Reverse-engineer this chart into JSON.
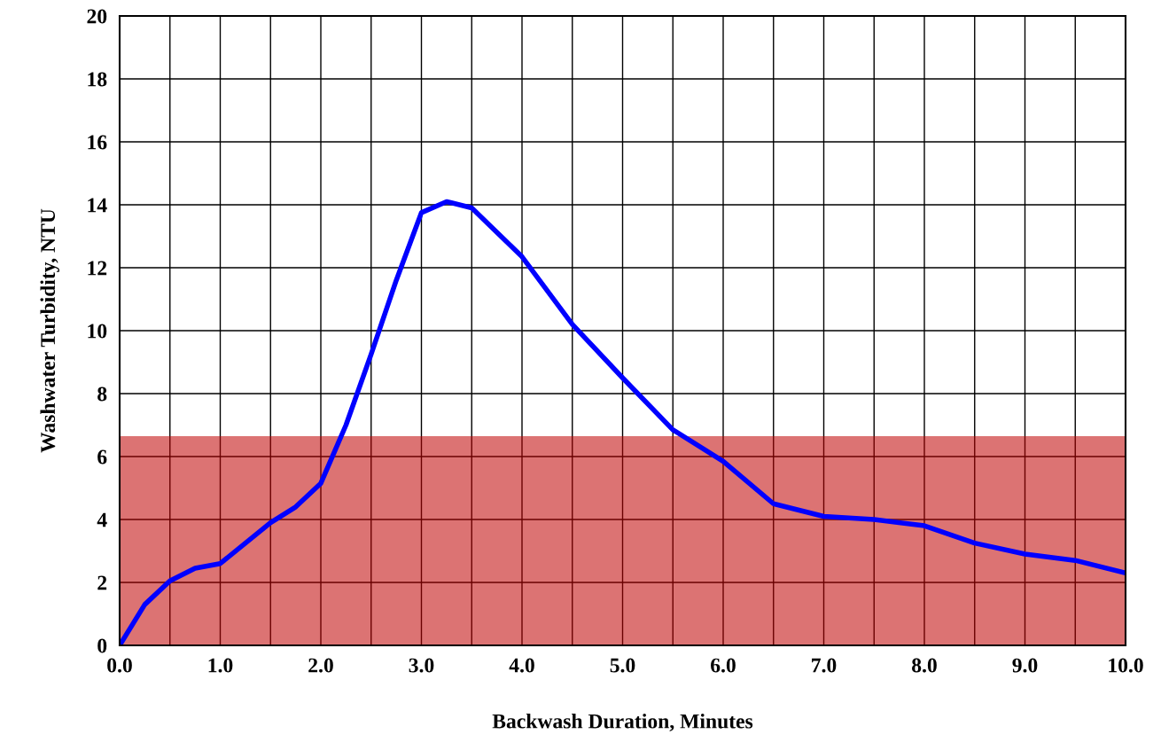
{
  "chart_data": {
    "type": "line",
    "xlabel": "Backwash Duration, Minutes",
    "ylabel": "Washwater Turbidity, NTU",
    "x": [
      0,
      0.25,
      0.5,
      0.75,
      1.0,
      1.5,
      1.75,
      2.0,
      2.25,
      2.5,
      2.75,
      3.0,
      3.25,
      3.5,
      4.0,
      4.5,
      5.0,
      5.5,
      6.0,
      6.5,
      7.0,
      7.5,
      8.0,
      8.5,
      9.0,
      9.5,
      10.0
    ],
    "series": [
      {
        "color": "#0000ff",
        "values": [
          0,
          1.3,
          2.05,
          2.45,
          2.6,
          3.9,
          4.4,
          5.15,
          7.0,
          9.25,
          11.6,
          13.75,
          14.1,
          13.9,
          12.35,
          10.2,
          8.5,
          6.85,
          5.85,
          4.5,
          4.1,
          4.0,
          3.8,
          3.25,
          2.9,
          2.7,
          2.3
        ]
      }
    ],
    "bands": [
      {
        "axis": "y",
        "from": 0,
        "to": 6.65,
        "color": "#c00000"
      }
    ],
    "xlim": [
      0,
      10
    ],
    "ylim": [
      0,
      20
    ],
    "xticks": [
      {
        "value": 0,
        "label": "0.0"
      },
      {
        "value": 0.5,
        "label": null
      },
      {
        "value": 1,
        "label": "1.0"
      },
      {
        "value": 1.5,
        "label": null
      },
      {
        "value": 2,
        "label": "2.0"
      },
      {
        "value": 2.5,
        "label": null
      },
      {
        "value": 3,
        "label": "3.0"
      },
      {
        "value": 3.5,
        "label": null
      },
      {
        "value": 4,
        "label": "4.0"
      },
      {
        "value": 4.5,
        "label": null
      },
      {
        "value": 5,
        "label": "5.0"
      },
      {
        "value": 5.5,
        "label": null
      },
      {
        "value": 6,
        "label": "6.0"
      },
      {
        "value": 6.5,
        "label": null
      },
      {
        "value": 7,
        "label": "7.0"
      },
      {
        "value": 7.5,
        "label": null
      },
      {
        "value": 8,
        "label": "8.0"
      },
      {
        "value": 8.5,
        "label": null
      },
      {
        "value": 9,
        "label": "9.0"
      },
      {
        "value": 9.5,
        "label": null
      },
      {
        "value": 10,
        "label": "10.0"
      }
    ],
    "yticks": [
      0,
      2,
      4,
      6,
      8,
      10,
      12,
      14,
      16,
      18,
      20
    ],
    "grid": true,
    "line_style": "solid",
    "marker": "none",
    "legend": false
  }
}
